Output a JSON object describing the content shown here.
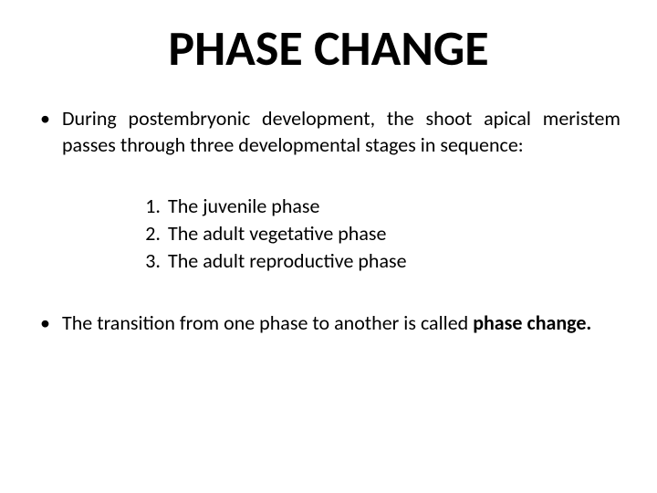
{
  "title": "PHASE CHANGE",
  "intro": {
    "text": "During postembryonic development, the shoot apical meristem passes through three developmental stages in sequence:"
  },
  "phases": [
    {
      "num": "1.",
      "text": "The juvenile phase"
    },
    {
      "num": "2.",
      "text": "The adult vegetative phase"
    },
    {
      "num": "3.",
      "text": "The adult reproductive phase"
    }
  ],
  "closing": {
    "prefix": "The transition from one phase to another is called ",
    "bold": "phase change."
  },
  "bullet_char": "•",
  "colors": {
    "background": "#ffffff",
    "text": "#000000"
  },
  "fonts": {
    "title_size": 54,
    "body_size": 22
  }
}
